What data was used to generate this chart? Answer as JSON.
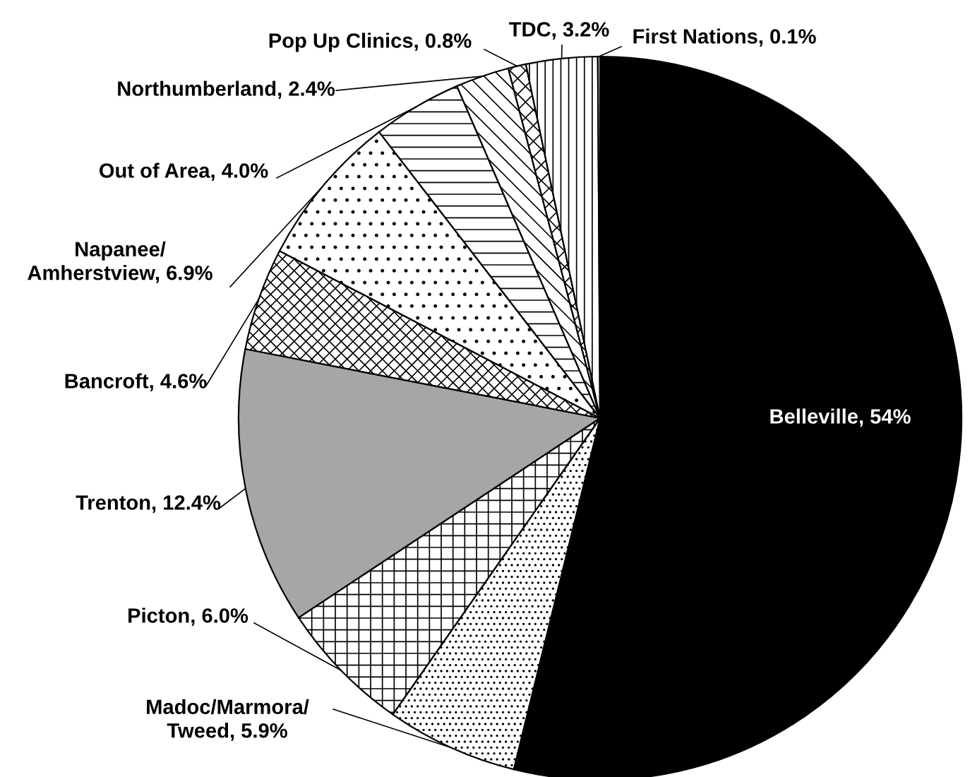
{
  "chart_data": {
    "type": "pie",
    "categories": [
      "Belleville",
      "Madoc/Marmora/\nTweed",
      "Picton",
      "Trenton",
      "Bancroft",
      "Napanee/\nAmherstview",
      "Out of Area",
      "Northumberland",
      "Pop Up Clinics",
      "TDC",
      "First Nations"
    ],
    "values": [
      54,
      5.9,
      6.0,
      12.4,
      4.6,
      6.9,
      4.0,
      2.4,
      0.8,
      3.2,
      0.1
    ],
    "value_labels": [
      "54%",
      "5.9%",
      "6.0%",
      "12.4%",
      "4.6%",
      "6.9%",
      "4.0%",
      "2.4%",
      "0.8%",
      "3.2%",
      "0.1%"
    ],
    "colors": [
      "#000000",
      "#ffffff",
      "#ffffff",
      "#a6a6a6",
      "#ffffff",
      "#ffffff",
      "#ffffff",
      "#ffffff",
      "#ffffff",
      "#ffffff",
      "#ffffff"
    ]
  }
}
